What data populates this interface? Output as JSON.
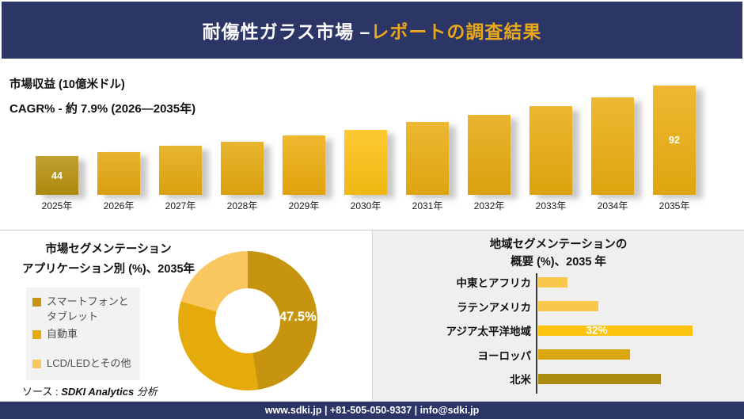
{
  "header": {
    "title_white": "耐傷性ガラス市場 –",
    "title_gold": "レポートの調査結果"
  },
  "revenue": {
    "metric_label": "市場収益 (10億米ドル)",
    "cagr_label": "CAGR% - 約 7.9% (2026―2035年)"
  },
  "segmentation": {
    "title_line1": "市場セグメンテーション",
    "title_line2": "アプリケーション別 (%)、2035年"
  },
  "regional": {
    "title_line1": "地域セグメンテーションの",
    "title_line2": "概要 (%)、2035 年"
  },
  "source": {
    "prefix": "ソース : ",
    "name": "SDKI Analytics",
    "suffix": "分析"
  },
  "footer": {
    "contact": "www.sdki.jp | +81-505-050-9337 | info@sdki.jp"
  },
  "colors": {
    "navy": "#2b3566",
    "header_gold": "#e9a81a",
    "panel_gray": "#f0eff0",
    "legend_gray": "#f2f2f2"
  },
  "chart_data": [
    {
      "type": "bar",
      "title": "市場収益 (10億米ドル)",
      "subtitle": "CAGR% - 約 7.9% (2026―2035年)",
      "categories": [
        "2025年",
        "2026年",
        "2027年",
        "2028年",
        "2029年",
        "2030年",
        "2031年",
        "2032年",
        "2033年",
        "2034年",
        "2035年"
      ],
      "values": [
        44,
        47,
        51,
        54,
        58,
        62,
        67,
        72,
        78,
        84,
        92
      ],
      "value_labels": {
        "2025年": "44",
        "2035年": "92"
      },
      "bar_colors": [
        "#b6910e",
        "#e3a70e",
        "#e4a90e",
        "#e4a90e",
        "#edac0d",
        "#fcc112",
        "#e9ad10",
        "#e5a90e",
        "#e8ab0e",
        "#e9ad0f",
        "#ebae10"
      ],
      "xlabel": "",
      "ylabel": "10億米ドル",
      "grid": false,
      "legend_position": "none"
    },
    {
      "type": "pie",
      "donut": true,
      "title": "市場セグメンテーション アプリケーション別 (%)、2035年",
      "slices": [
        {
          "label": "スマートフォンとタブレット",
          "value": 47.5,
          "color": "#c6940f",
          "data_label": "47.5%"
        },
        {
          "label": "自動車",
          "value": 32,
          "color": "#e5ab0d"
        },
        {
          "label": "LCD/LEDとその他",
          "value": 20.5,
          "color": "#f8c75f"
        }
      ],
      "legend_position": "left"
    },
    {
      "type": "bar",
      "orientation": "horizontal",
      "title": "地域セグメンテーションの概要 (%)、2035 年",
      "categories": [
        "中東とアフリカ",
        "ラテンアメリカ",
        "アジア太平洋地域",
        "ヨーロッパ",
        "北米"
      ],
      "values": [
        6,
        12.5,
        32,
        19,
        25.5
      ],
      "value_labels": {
        "アジア太平洋地域": "32%"
      },
      "bar_colors": [
        "#f8c74c",
        "#f8c74c",
        "#fdc40f",
        "#dba711",
        "#aa8b0e"
      ],
      "xlim": [
        0,
        35
      ],
      "grid": false,
      "legend_position": "none"
    }
  ]
}
